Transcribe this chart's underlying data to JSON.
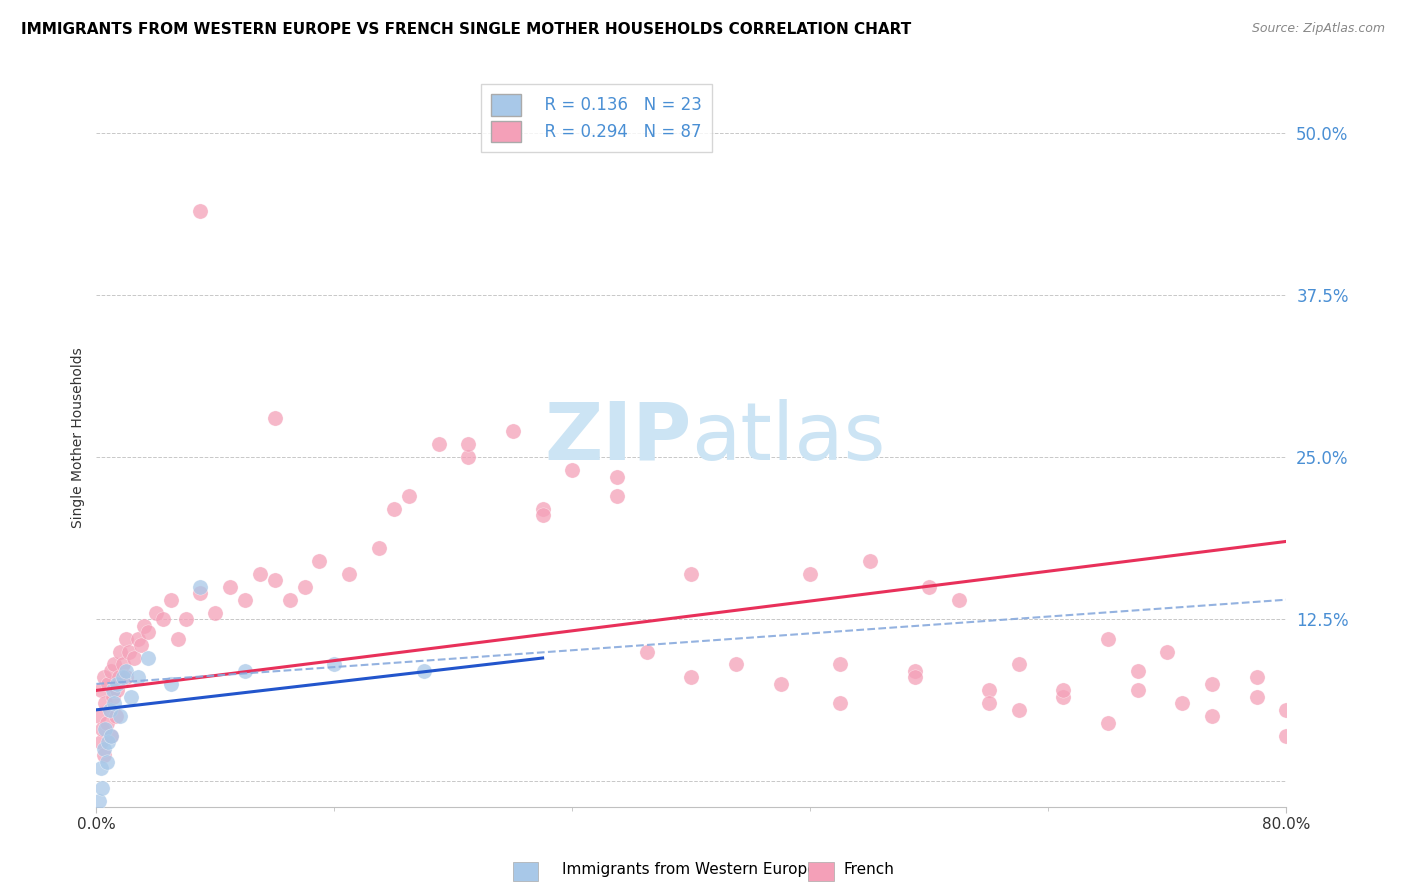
{
  "title": "IMMIGRANTS FROM WESTERN EUROPE VS FRENCH SINGLE MOTHER HOUSEHOLDS CORRELATION CHART",
  "source": "Source: ZipAtlas.com",
  "ylabel": "Single Mother Households",
  "legend_label1": "Immigrants from Western Europe",
  "legend_label2": "French",
  "R1": 0.136,
  "N1": 23,
  "R2": 0.294,
  "N2": 87,
  "color1": "#a8c8e8",
  "color2": "#f4a0b8",
  "trendline1_color": "#2255cc",
  "trendline2_color": "#e8305a",
  "dash_color": "#88aadd",
  "watermark_color": "#cce4f4",
  "xlim": [
    0.0,
    80.0
  ],
  "ylim": [
    -2.0,
    55.0
  ],
  "ytick_vals": [
    0.0,
    12.5,
    25.0,
    37.5,
    50.0
  ],
  "ytick_labels": [
    "",
    "12.5%",
    "25.0%",
    "37.5%",
    "50.0%"
  ],
  "blue_x": [
    0.2,
    0.3,
    0.4,
    0.5,
    0.6,
    0.7,
    0.8,
    0.9,
    1.0,
    1.1,
    1.2,
    1.4,
    1.6,
    1.8,
    2.0,
    2.3,
    2.8,
    3.5,
    5.0,
    7.0,
    10.0,
    16.0,
    22.0
  ],
  "blue_y": [
    -1.5,
    1.0,
    -0.5,
    2.5,
    4.0,
    1.5,
    3.0,
    5.5,
    3.5,
    7.0,
    6.0,
    7.5,
    5.0,
    8.0,
    8.5,
    6.5,
    8.0,
    9.5,
    7.5,
    15.0,
    8.5,
    9.0,
    8.5
  ],
  "pink_x": [
    0.2,
    0.3,
    0.3,
    0.4,
    0.5,
    0.5,
    0.6,
    0.7,
    0.8,
    0.9,
    1.0,
    1.0,
    1.1,
    1.2,
    1.3,
    1.4,
    1.5,
    1.6,
    1.8,
    2.0,
    2.0,
    2.2,
    2.5,
    2.8,
    3.0,
    3.2,
    3.5,
    4.0,
    4.5,
    5.0,
    5.5,
    6.0,
    7.0,
    8.0,
    9.0,
    10.0,
    11.0,
    12.0,
    13.0,
    14.0,
    15.0,
    17.0,
    19.0,
    21.0,
    23.0,
    25.0,
    28.0,
    30.0,
    32.0,
    35.0,
    37.0,
    40.0,
    43.0,
    46.0,
    50.0,
    55.0,
    60.0,
    62.0,
    65.0,
    68.0,
    70.0,
    73.0,
    75.0,
    78.0,
    80.0,
    7.0,
    12.0,
    20.0,
    25.0,
    30.0,
    35.0,
    40.0,
    50.0,
    55.0,
    60.0,
    65.0,
    70.0,
    48.0,
    52.0,
    56.0,
    58.0,
    62.0,
    68.0,
    72.0,
    75.0,
    78.0,
    80.0
  ],
  "pink_y": [
    5.0,
    7.0,
    3.0,
    4.0,
    8.0,
    2.0,
    6.0,
    4.5,
    7.5,
    5.5,
    8.5,
    3.5,
    6.5,
    9.0,
    5.0,
    7.0,
    8.0,
    10.0,
    9.0,
    8.0,
    11.0,
    10.0,
    9.5,
    11.0,
    10.5,
    12.0,
    11.5,
    13.0,
    12.5,
    14.0,
    11.0,
    12.5,
    14.5,
    13.0,
    15.0,
    14.0,
    16.0,
    15.5,
    14.0,
    15.0,
    17.0,
    16.0,
    18.0,
    22.0,
    26.0,
    25.0,
    27.0,
    21.0,
    24.0,
    23.5,
    10.0,
    8.0,
    9.0,
    7.5,
    6.0,
    8.5,
    7.0,
    5.5,
    6.5,
    4.5,
    7.0,
    6.0,
    5.0,
    8.0,
    5.5,
    44.0,
    28.0,
    21.0,
    26.0,
    20.5,
    22.0,
    16.0,
    9.0,
    8.0,
    6.0,
    7.0,
    8.5,
    16.0,
    17.0,
    15.0,
    14.0,
    9.0,
    11.0,
    10.0,
    7.5,
    6.5,
    3.5
  ],
  "trend1_x0": 0.0,
  "trend1_x1": 30.0,
  "trend1_y0": 5.5,
  "trend1_y1": 9.5,
  "trend2_x0": 0.0,
  "trend2_x1": 80.0,
  "trend2_y0": 7.0,
  "trend2_y1": 18.5,
  "dash_x0": 0.0,
  "dash_x1": 80.0,
  "dash_y0": 7.5,
  "dash_y1": 14.0
}
